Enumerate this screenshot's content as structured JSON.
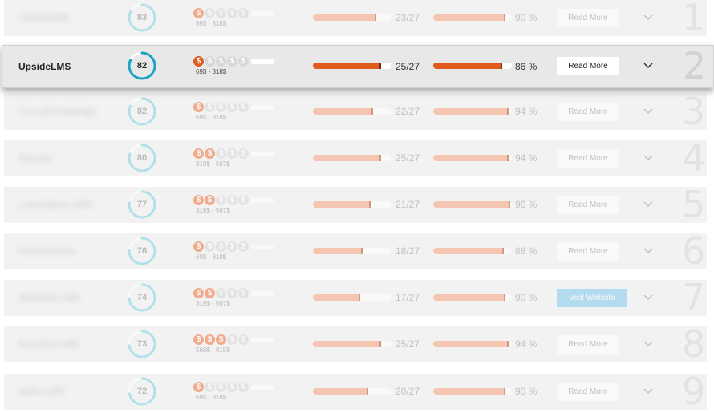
{
  "colors": {
    "accent": "#e05a1c",
    "accent_light": "#f7a37e",
    "ring_active": "#1aa3c4",
    "ring": "#7fd3e0",
    "visit_button": "#7ec9ee"
  },
  "products": [
    {
      "rank": "1",
      "name": "CoboltLMS",
      "score": "83",
      "score_value": 83,
      "coins_filled": 1,
      "price": "69$ - 318$",
      "features": "23/27",
      "features_value": 0.85,
      "satisfaction": "90 %",
      "satisfaction_value": 0.9,
      "button": "Read More",
      "button_type": "read",
      "active": false,
      "blurred": true
    },
    {
      "rank": "2",
      "name": "UpsideLMS",
      "score": "82",
      "score_value": 82,
      "coins_filled": 1,
      "price": "69$ - 318$",
      "features": "25/27",
      "features_value": 0.926,
      "satisfaction": "86 %",
      "satisfaction_value": 0.86,
      "button": "Read More",
      "button_type": "read",
      "active": true,
      "blurred": false
    },
    {
      "rank": "3",
      "name": "CrossKnowledge",
      "score": "82",
      "score_value": 82,
      "coins_filled": 1,
      "price": "69$ - 318$",
      "features": "22/27",
      "features_value": 0.815,
      "satisfaction": "94 %",
      "satisfaction_value": 0.94,
      "button": "Read More",
      "button_type": "read",
      "active": false,
      "blurred": true
    },
    {
      "rank": "4",
      "name": "Docebo",
      "score": "80",
      "score_value": 80,
      "coins_filled": 2,
      "price": "319$ - 567$",
      "features": "25/27",
      "features_value": 0.926,
      "satisfaction": "94 %",
      "satisfaction_value": 0.94,
      "button": "Read More",
      "button_type": "read",
      "active": false,
      "blurred": true
    },
    {
      "rank": "5",
      "name": "LearnUpon LMS",
      "score": "77",
      "score_value": 77,
      "coins_filled": 2,
      "price": "319$ - 567$",
      "features": "21/27",
      "features_value": 0.778,
      "satisfaction": "96 %",
      "satisfaction_value": 0.96,
      "button": "Read More",
      "button_type": "read",
      "active": false,
      "blurred": true
    },
    {
      "rank": "6",
      "name": "Cornerstone",
      "score": "76",
      "score_value": 76,
      "coins_filled": 1,
      "price": "69$ - 318$",
      "features": "18/27",
      "features_value": 0.667,
      "satisfaction": "88 %",
      "satisfaction_value": 0.88,
      "button": "Read More",
      "button_type": "read",
      "active": false,
      "blurred": true
    },
    {
      "rank": "7",
      "name": "SkillSoft LMS",
      "score": "74",
      "score_value": 74,
      "coins_filled": 2,
      "price": "319$ - 567$",
      "features": "17/27",
      "features_value": 0.63,
      "satisfaction": "90 %",
      "satisfaction_value": 0.9,
      "button": "Visit Website",
      "button_type": "visit",
      "active": false,
      "blurred": true
    },
    {
      "rank": "8",
      "name": "Eurekos LMS",
      "score": "73",
      "score_value": 73,
      "coins_filled": 3,
      "price": "568$ - 815$",
      "features": "25/27",
      "features_value": 0.926,
      "satisfaction": "94 %",
      "satisfaction_value": 0.94,
      "button": "Read More",
      "button_type": "read",
      "active": false,
      "blurred": true
    },
    {
      "rank": "9",
      "name": "Sollo LMS",
      "score": "72",
      "score_value": 72,
      "coins_filled": 1,
      "price": "69$ - 318$",
      "features": "20/27",
      "features_value": 0.741,
      "satisfaction": "90 %",
      "satisfaction_value": 0.9,
      "button": "Read More",
      "button_type": "read",
      "active": false,
      "blurred": true
    }
  ],
  "coin_symbol": "$",
  "icons": {
    "chevron": "chevron-down-icon",
    "coin": "dollar-coin-icon"
  }
}
